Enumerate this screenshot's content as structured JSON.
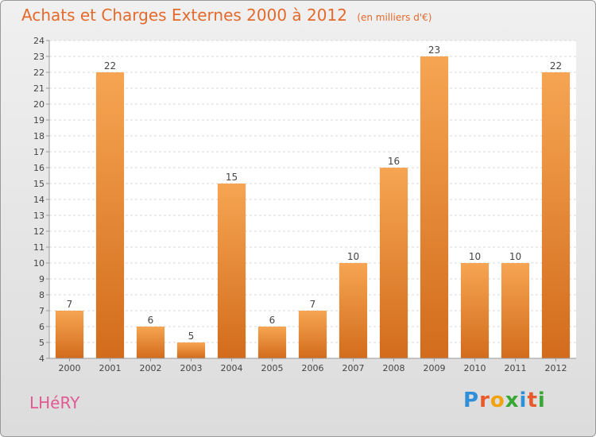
{
  "header": {
    "title": "Achats et Charges Externes 2000 à 2012",
    "unit": "(en milliers d'€)"
  },
  "footer": {
    "place": "LHéRY",
    "logo": {
      "text": "Proxiti",
      "letter_colors": [
        "#2f8fd8",
        "#e85a2a",
        "#f2a20c",
        "#38a834",
        "#2f8fd8",
        "#e85a2a",
        "#38a834"
      ]
    }
  },
  "chart_data": {
    "type": "bar",
    "categories": [
      "2000",
      "2001",
      "2002",
      "2003",
      "2004",
      "2005",
      "2006",
      "2007",
      "2008",
      "2009",
      "2010",
      "2011",
      "2012"
    ],
    "values": [
      7,
      22,
      6,
      5,
      15,
      6,
      7,
      10,
      16,
      23,
      10,
      10,
      22
    ],
    "data_labels": [
      "7",
      "22",
      "6",
      "5",
      "15",
      "6",
      "7",
      "10",
      "16",
      "23",
      "10",
      "10",
      "22"
    ],
    "ylim": [
      4,
      24
    ],
    "yticks": [
      "4",
      "5",
      "6",
      "7",
      "8",
      "9",
      "10",
      "11",
      "12",
      "13",
      "14",
      "15",
      "16",
      "17",
      "18",
      "19",
      "20",
      "21",
      "22",
      "23",
      "24"
    ],
    "grid": true,
    "bar_color_top": "#f6a552",
    "bar_color_bottom": "#d26c1c",
    "legend": "none"
  }
}
